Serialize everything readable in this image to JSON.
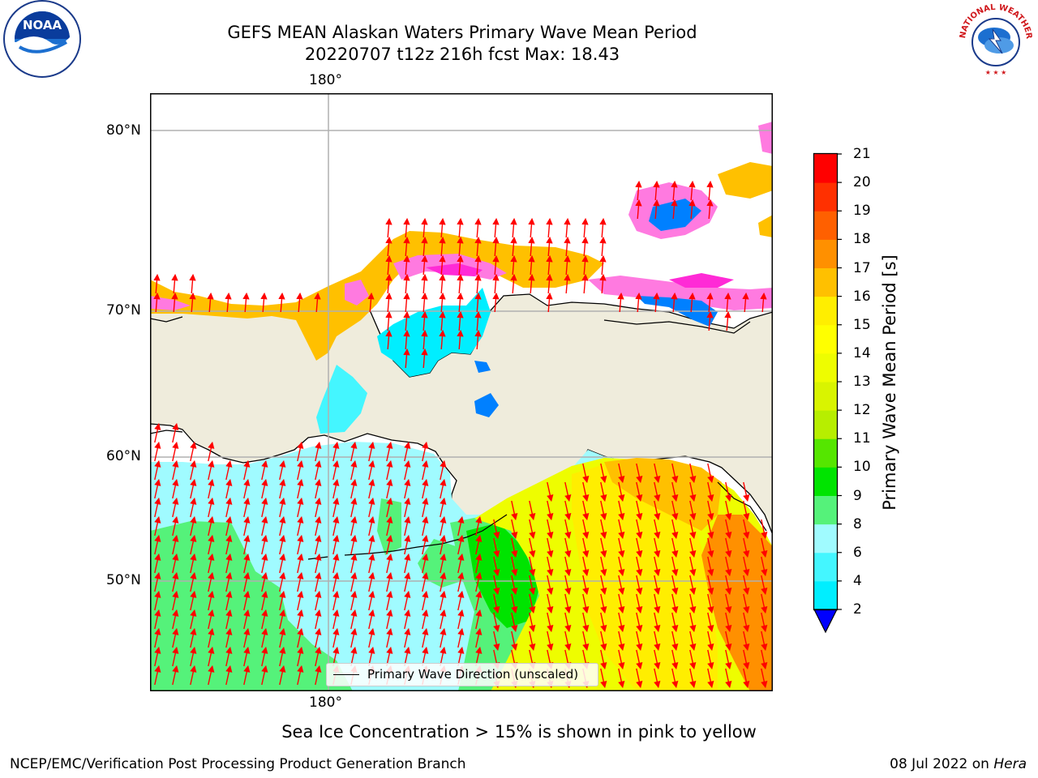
{
  "header": {
    "title_line1": "GEFS MEAN Alaskan Waters Primary Wave Mean Period",
    "title_line2": "20220707 t12z 216h fcst   Max: 18.43"
  },
  "map": {
    "lat_labels": [
      "80°N",
      "70°N",
      "60°N",
      "50°N"
    ],
    "lon_label_top": "180°",
    "lon_label_bottom": "180°",
    "land_color": "#efecdc",
    "arrow_color": "#ff0000",
    "grid_color": "#b0b0b0"
  },
  "colorbar": {
    "label": "Primary Wave Mean Period [s]",
    "ticks": [
      "2",
      "4",
      "6",
      "8",
      "9",
      "10",
      "11",
      "12",
      "13",
      "14",
      "15",
      "16",
      "17",
      "18",
      "19",
      "20",
      "21"
    ],
    "colors": [
      "#0080ff",
      "#00eeff",
      "#44f6ff",
      "#a0fbff",
      "#55f27a",
      "#00e400",
      "#55e600",
      "#b7ee00",
      "#d9f400",
      "#eefd00",
      "#ffff00",
      "#ffee00",
      "#ffc000",
      "#ff9000",
      "#ff6000",
      "#ff3000",
      "#ff0000"
    ],
    "underflow_color": "#0000ff"
  },
  "legend": {
    "label": "Primary Wave Direction (unscaled)"
  },
  "caption": "Sea Ice Concentration > 15% is shown in pink to yellow",
  "footer": {
    "left": "NCEP/EMC/Verification Post Processing Product Generation Branch",
    "right_prefix": "08 Jul 2022 on ",
    "right_host": "Hera"
  },
  "logos": {
    "left": "NOAA",
    "right_text": "NATIONAL WEATHER SERVICE"
  }
}
